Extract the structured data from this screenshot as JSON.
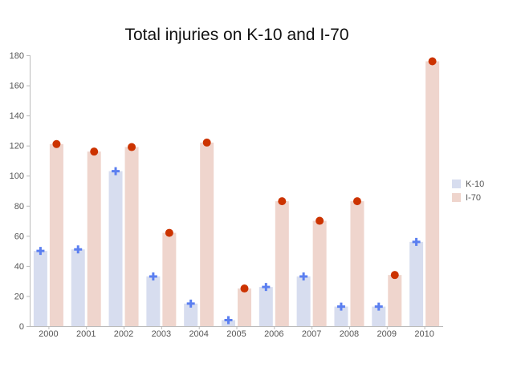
{
  "chart_data": {
    "type": "bar",
    "title": "Total injuries on K-10 and I-70",
    "xlabel": "",
    "ylabel": "",
    "categories": [
      "2000",
      "2001",
      "2002",
      "2003",
      "2004",
      "2005",
      "2006",
      "2007",
      "2008",
      "2009",
      "2010"
    ],
    "yticks": [
      "0",
      "20",
      "40",
      "60",
      "80",
      "100",
      "120",
      "140",
      "160",
      "180"
    ],
    "ylim": [
      0,
      180
    ],
    "grid": false,
    "legend_position": "right",
    "series": [
      {
        "name": "K-10",
        "values": [
          50,
          51,
          103,
          33,
          15,
          4,
          26,
          33,
          13,
          13,
          56
        ],
        "bar_color": "#d7ddef",
        "marker": "plus",
        "marker_color": "#5b7ff0"
      },
      {
        "name": "I-70",
        "values": [
          121,
          116,
          119,
          62,
          122,
          25,
          83,
          70,
          83,
          34,
          176
        ],
        "bar_color": "#efd5cd",
        "marker": "circle",
        "marker_color": "#cc3300"
      }
    ]
  }
}
